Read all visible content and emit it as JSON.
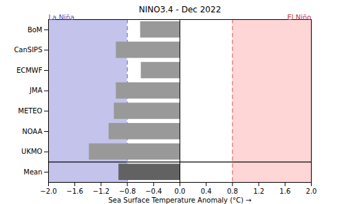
{
  "chart_data": {
    "type": "bar",
    "orientation": "horizontal",
    "title": "NINO3.4 - Dec 2022",
    "xlabel": "Sea Surface Temperature Anomaly (°C)",
    "categories": [
      "BoM",
      "CanSIPS",
      "ECMWF",
      "JMA",
      "METEO",
      "NOAA",
      "UKMO",
      "Mean"
    ],
    "values": [
      -0.6,
      -0.97,
      -0.59,
      -0.97,
      -1.0,
      -1.08,
      -1.38,
      -0.93
    ],
    "colors": [
      "#999999",
      "#999999",
      "#999999",
      "#999999",
      "#999999",
      "#999999",
      "#999999",
      "#626262"
    ],
    "xlim": [
      -2.0,
      2.0
    ],
    "xticks": [
      {
        "value": -2.0,
        "label": "−2.0"
      },
      {
        "value": -1.6,
        "label": "−1.6"
      },
      {
        "value": -1.2,
        "label": "−1.2"
      },
      {
        "value": -0.8,
        "label": "−0.8"
      },
      {
        "value": -0.4,
        "label": "−0.4"
      },
      {
        "value": 0,
        "label": "0.0"
      },
      0.4,
      0.8,
      1.2,
      1.6,
      {
        "value": 2.0,
        "label": "2.0"
      }
    ],
    "regions": [
      {
        "label": "La Niña",
        "threshold": -0.8,
        "side": "left",
        "color": "#c3c3eb",
        "line_color": "#6a6ad0",
        "text_color": "#4b4bb0"
      },
      {
        "label": "El Niño",
        "threshold": 0.8,
        "side": "right",
        "color": "#ffd6d6",
        "line_color": "#e07070",
        "text_color": "#c03030"
      }
    ]
  }
}
